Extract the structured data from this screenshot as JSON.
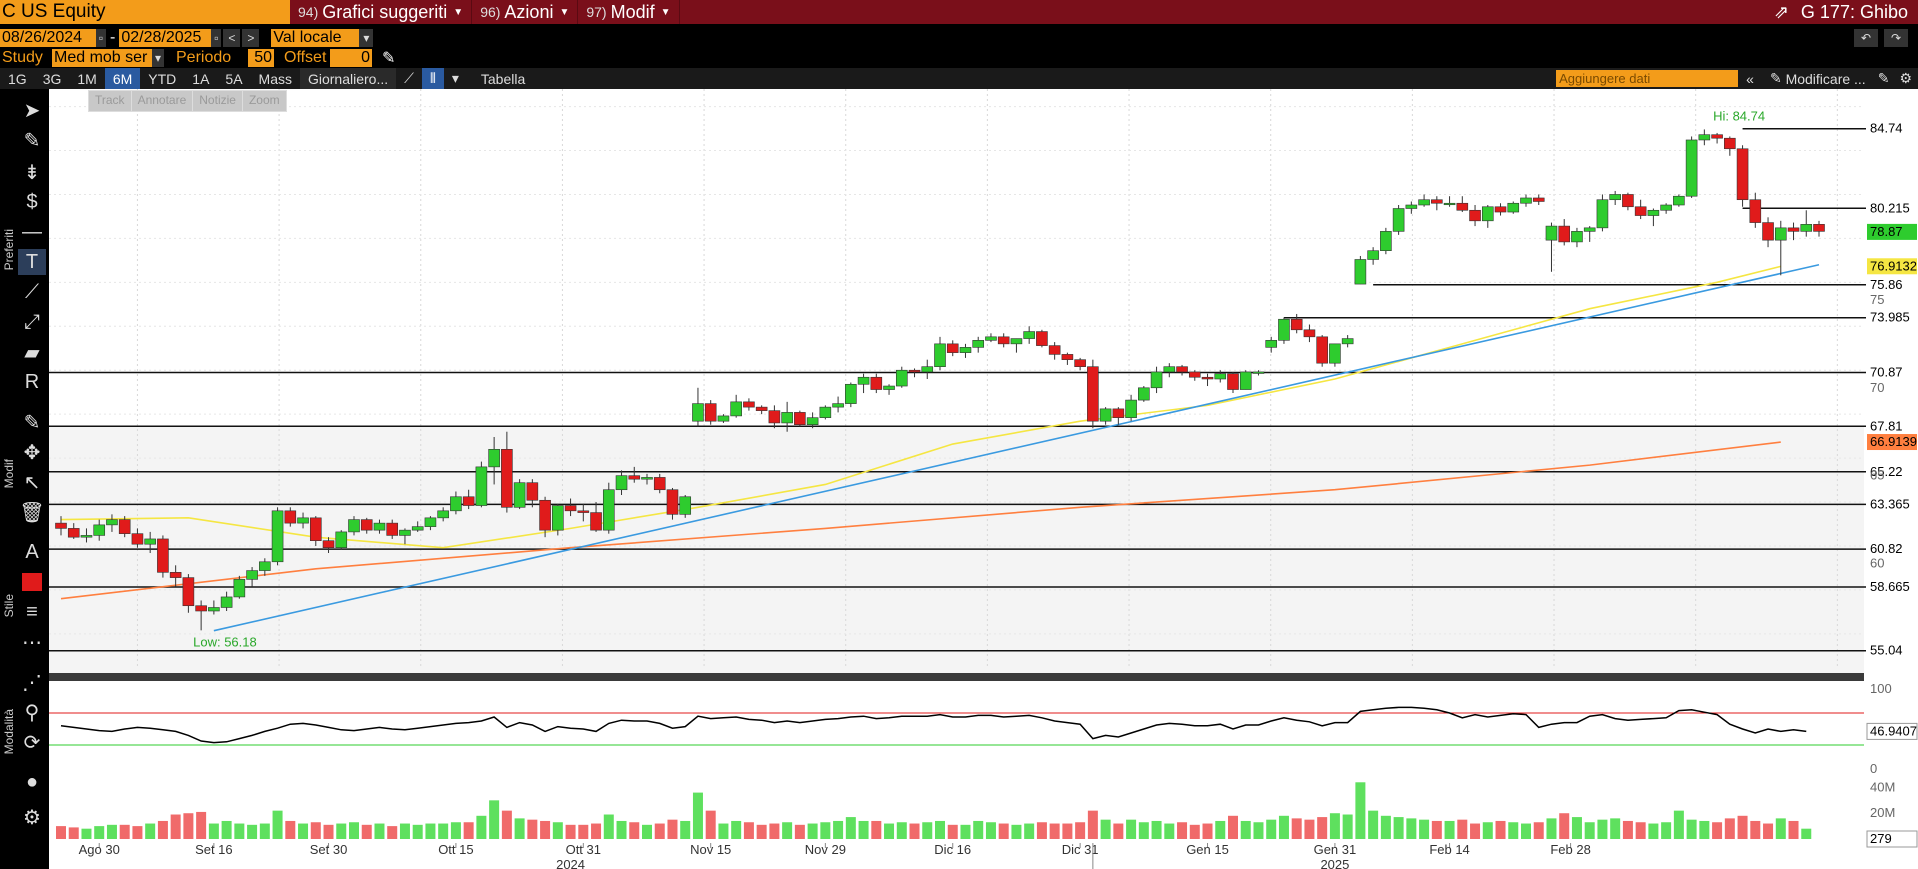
{
  "header": {
    "ticker": "C US Equity",
    "menus": [
      {
        "num": "94)",
        "label": "Grafici suggeriti"
      },
      {
        "num": "96)",
        "label": "Azioni"
      },
      {
        "num": "97)",
        "label": "Modif"
      }
    ],
    "right_title": "G 177: Ghibo"
  },
  "controls": {
    "start_date": "08/26/2024",
    "sep": "-",
    "end_date": "02/28/2025",
    "currency": "Val locale",
    "study_label": "Study",
    "study_value": "Med mob ser",
    "period_label": "Periodo",
    "period_value": "50",
    "offset_label": "Offset",
    "offset_value": "0"
  },
  "tabs": {
    "ranges": [
      "1G",
      "3G",
      "1M",
      "6M",
      "YTD",
      "1A",
      "5A",
      "Mass"
    ],
    "selected": "6M",
    "freq": "Giornaliero...",
    "table": "Tabella",
    "add_data_placeholder": "Aggiungere dati",
    "modify": "Modificare ..."
  },
  "subtools": [
    "Track",
    "Annotare",
    "Notizie",
    "Zoom"
  ],
  "leftbar_sections": [
    "Preferiti",
    "Modif",
    "Stile",
    "Modalità"
  ],
  "colors": {
    "up": "#2ecc2e",
    "down": "#e01b1b",
    "ma50": "#f5e642",
    "ma200": "#ff7f3f",
    "trend": "#3a9ae0",
    "rsi_upper": "#e01b1b",
    "rsi_lower": "#2ecc2e"
  },
  "chart_data": {
    "type": "candlestick",
    "price_scale": {
      "min": 54,
      "max": 87
    },
    "annotations": {
      "hi": "Hi: 84.74",
      "low": "Low: 56.18"
    },
    "levels": [
      84.74,
      80.215,
      75.86,
      73.985,
      70.87,
      67.81,
      65.22,
      63.365,
      60.82,
      58.665,
      55.04
    ],
    "last_tags": [
      {
        "value": "78.87",
        "color": "#2ecc2e"
      },
      {
        "value": "76.9132",
        "color": "#f5e642"
      },
      {
        "value": "66.9139",
        "color": "#ff7f3f"
      }
    ],
    "axis_ticks": [
      "60",
      "65",
      "70",
      "75"
    ],
    "x_labels": [
      "Ago 30",
      "Set 16",
      "Set 30",
      "Ott 15",
      "Ott 31",
      "Nov 15",
      "Nov 29",
      "Dic 16",
      "Dic 31",
      "Gen 15",
      "Gen 31",
      "Feb 14",
      "Feb 28"
    ],
    "year_labels": [
      "2024",
      "2025"
    ],
    "candles": [
      [
        62.3,
        62.7,
        61.6,
        62.0
      ],
      [
        62.0,
        62.3,
        61.4,
        61.5
      ],
      [
        61.5,
        62.0,
        61.2,
        61.6
      ],
      [
        61.6,
        62.5,
        61.3,
        62.2
      ],
      [
        62.2,
        62.8,
        61.8,
        62.5
      ],
      [
        62.5,
        62.7,
        61.5,
        61.7
      ],
      [
        61.7,
        62.0,
        60.9,
        61.1
      ],
      [
        61.1,
        61.8,
        60.6,
        61.4
      ],
      [
        61.4,
        61.6,
        59.2,
        59.5
      ],
      [
        59.5,
        59.9,
        58.7,
        59.2
      ],
      [
        59.2,
        59.4,
        57.2,
        57.6
      ],
      [
        57.6,
        57.9,
        56.2,
        57.3
      ],
      [
        57.3,
        57.9,
        57.1,
        57.5
      ],
      [
        57.5,
        58.4,
        57.3,
        58.1
      ],
      [
        58.1,
        59.3,
        58.0,
        59.1
      ],
      [
        59.1,
        59.8,
        58.7,
        59.6
      ],
      [
        59.6,
        60.3,
        59.3,
        60.1
      ],
      [
        60.1,
        63.2,
        59.9,
        63.0
      ],
      [
        63.0,
        63.2,
        62.1,
        62.3
      ],
      [
        62.3,
        62.9,
        62.0,
        62.6
      ],
      [
        62.6,
        62.7,
        61.0,
        61.3
      ],
      [
        61.3,
        61.5,
        60.6,
        60.9
      ],
      [
        60.9,
        61.9,
        60.8,
        61.8
      ],
      [
        61.8,
        62.7,
        61.6,
        62.5
      ],
      [
        62.5,
        62.6,
        61.7,
        61.9
      ],
      [
        61.9,
        62.5,
        61.7,
        62.3
      ],
      [
        62.3,
        62.5,
        61.4,
        61.6
      ],
      [
        61.6,
        62.0,
        61.1,
        61.9
      ],
      [
        61.9,
        62.4,
        61.8,
        62.1
      ],
      [
        62.1,
        62.7,
        61.9,
        62.6
      ],
      [
        62.6,
        63.2,
        62.4,
        63.0
      ],
      [
        63.0,
        64.1,
        62.8,
        63.8
      ],
      [
        63.8,
        64.2,
        63.1,
        63.3
      ],
      [
        63.3,
        65.8,
        63.2,
        65.5
      ],
      [
        65.5,
        67.2,
        64.5,
        66.5
      ],
      [
        66.5,
        67.5,
        62.9,
        63.2
      ],
      [
        63.2,
        64.8,
        63.1,
        64.6
      ],
      [
        64.6,
        64.8,
        63.2,
        63.6
      ],
      [
        63.6,
        63.8,
        61.5,
        61.9
      ],
      [
        61.9,
        63.4,
        61.6,
        63.3
      ],
      [
        63.3,
        63.7,
        62.7,
        63.0
      ],
      [
        63.0,
        63.4,
        62.4,
        62.9
      ],
      [
        62.9,
        63.5,
        61.8,
        61.9
      ],
      [
        61.9,
        64.6,
        61.7,
        64.2
      ],
      [
        64.2,
        65.3,
        63.9,
        65.0
      ],
      [
        65.0,
        65.5,
        64.6,
        64.8
      ],
      [
        64.8,
        65.1,
        64.5,
        64.9
      ],
      [
        64.9,
        65.1,
        64.0,
        64.2
      ],
      [
        64.2,
        64.3,
        62.5,
        62.8
      ],
      [
        62.8,
        63.9,
        62.6,
        63.8
      ],
      [
        68.1,
        70.0,
        67.8,
        69.1
      ],
      [
        69.1,
        69.3,
        67.9,
        68.1
      ],
      [
        68.1,
        68.5,
        68.0,
        68.4
      ],
      [
        68.4,
        69.6,
        68.3,
        69.2
      ],
      [
        69.2,
        69.4,
        68.7,
        68.9
      ],
      [
        68.9,
        69.0,
        68.5,
        68.7
      ],
      [
        68.7,
        69.0,
        67.7,
        68.0
      ],
      [
        68.0,
        69.2,
        67.5,
        68.6
      ],
      [
        68.6,
        68.7,
        67.8,
        67.9
      ],
      [
        67.9,
        68.6,
        67.7,
        68.3
      ],
      [
        68.3,
        69.0,
        68.2,
        68.9
      ],
      [
        68.9,
        69.5,
        68.6,
        69.1
      ],
      [
        69.1,
        70.3,
        68.9,
        70.2
      ],
      [
        70.2,
        70.8,
        69.7,
        70.6
      ],
      [
        70.6,
        70.8,
        69.7,
        69.9
      ],
      [
        69.9,
        70.2,
        69.6,
        70.1
      ],
      [
        70.1,
        71.2,
        70.0,
        71.0
      ],
      [
        71.0,
        71.1,
        70.6,
        70.9
      ],
      [
        70.9,
        71.6,
        70.5,
        71.2
      ],
      [
        71.2,
        72.9,
        71.0,
        72.5
      ],
      [
        72.5,
        72.7,
        71.8,
        72.0
      ],
      [
        72.0,
        72.5,
        71.7,
        72.3
      ],
      [
        72.3,
        72.9,
        72.0,
        72.7
      ],
      [
        72.7,
        73.1,
        72.6,
        72.9
      ],
      [
        72.9,
        73.1,
        72.3,
        72.5
      ],
      [
        72.5,
        72.8,
        72.0,
        72.8
      ],
      [
        72.8,
        73.5,
        72.5,
        73.2
      ],
      [
        73.2,
        73.3,
        72.3,
        72.4
      ],
      [
        72.4,
        72.6,
        71.6,
        71.9
      ],
      [
        71.9,
        72.0,
        71.3,
        71.6
      ],
      [
        71.6,
        71.7,
        71.0,
        71.2
      ],
      [
        71.2,
        71.6,
        67.7,
        68.1
      ],
      [
        68.1,
        68.9,
        67.9,
        68.8
      ],
      [
        68.8,
        68.9,
        67.9,
        68.3
      ],
      [
        68.3,
        69.6,
        68.1,
        69.3
      ],
      [
        69.3,
        70.1,
        69.2,
        70.0
      ],
      [
        70.0,
        71.2,
        69.7,
        70.9
      ],
      [
        70.9,
        71.4,
        70.6,
        71.2
      ],
      [
        71.2,
        71.3,
        70.7,
        70.9
      ],
      [
        70.9,
        71.0,
        70.4,
        70.6
      ],
      [
        70.6,
        70.8,
        70.1,
        70.5
      ],
      [
        70.5,
        71.0,
        70.3,
        70.8
      ],
      [
        70.8,
        70.9,
        69.7,
        69.9
      ],
      [
        69.9,
        71.0,
        69.9,
        70.9
      ],
      [
        70.9,
        71.0,
        70.7,
        70.9
      ],
      [
        72.3,
        72.9,
        72.0,
        72.7
      ],
      [
        72.7,
        74.0,
        72.5,
        73.9
      ],
      [
        73.9,
        74.2,
        73.1,
        73.3
      ],
      [
        73.3,
        73.6,
        72.6,
        72.9
      ],
      [
        72.9,
        73.0,
        71.2,
        71.4
      ],
      [
        71.4,
        72.5,
        71.2,
        72.5
      ],
      [
        72.5,
        73.0,
        72.3,
        72.8
      ],
      [
        75.9,
        77.5,
        75.9,
        77.3
      ],
      [
        77.3,
        78.0,
        77.0,
        77.8
      ],
      [
        77.8,
        79.1,
        77.6,
        78.9
      ],
      [
        78.9,
        80.4,
        78.7,
        80.2
      ],
      [
        80.2,
        80.6,
        79.9,
        80.4
      ],
      [
        80.4,
        81.0,
        80.3,
        80.7
      ],
      [
        80.7,
        80.9,
        80.1,
        80.5
      ],
      [
        80.5,
        80.9,
        80.3,
        80.5
      ],
      [
        80.5,
        80.9,
        80.0,
        80.1
      ],
      [
        80.1,
        80.4,
        79.2,
        79.5
      ],
      [
        79.5,
        80.4,
        79.1,
        80.3
      ],
      [
        80.3,
        80.5,
        79.8,
        80.0
      ],
      [
        80.0,
        80.6,
        79.9,
        80.5
      ],
      [
        80.5,
        81.0,
        80.3,
        80.8
      ],
      [
        80.8,
        81.0,
        80.4,
        80.6
      ],
      [
        78.4,
        79.4,
        76.6,
        79.2
      ],
      [
        79.2,
        79.6,
        78.1,
        78.3
      ],
      [
        78.3,
        79.1,
        78.0,
        78.9
      ],
      [
        78.9,
        79.2,
        78.3,
        79.1
      ],
      [
        79.1,
        81.0,
        78.9,
        80.7
      ],
      [
        80.7,
        81.2,
        80.4,
        81.0
      ],
      [
        81.0,
        81.1,
        80.1,
        80.3
      ],
      [
        80.3,
        80.7,
        79.6,
        79.8
      ],
      [
        79.8,
        80.2,
        79.2,
        80.1
      ],
      [
        80.1,
        80.5,
        79.9,
        80.4
      ],
      [
        80.4,
        81.0,
        80.3,
        80.9
      ],
      [
        80.9,
        84.3,
        80.8,
        84.1
      ],
      [
        84.1,
        84.7,
        83.8,
        84.4
      ],
      [
        84.4,
        84.5,
        83.9,
        84.2
      ],
      [
        84.2,
        84.3,
        83.2,
        83.6
      ],
      [
        83.6,
        83.8,
        80.3,
        80.7
      ],
      [
        80.7,
        81.1,
        79.1,
        79.4
      ],
      [
        79.4,
        79.7,
        78.0,
        78.4
      ],
      [
        78.4,
        79.5,
        76.4,
        79.1
      ],
      [
        79.1,
        79.4,
        78.4,
        78.9
      ],
      [
        78.9,
        80.1,
        78.6,
        79.3
      ],
      [
        79.3,
        79.5,
        78.6,
        78.9
      ]
    ],
    "ma50": [
      [
        0,
        62.5
      ],
      [
        10,
        62.6
      ],
      [
        20,
        61.5
      ],
      [
        30,
        60.9
      ],
      [
        40,
        62.0
      ],
      [
        50,
        63.2
      ],
      [
        60,
        64.5
      ],
      [
        70,
        66.8
      ],
      [
        80,
        68.1
      ],
      [
        90,
        69.0
      ],
      [
        100,
        70.5
      ],
      [
        110,
        72.5
      ],
      [
        120,
        74.5
      ],
      [
        130,
        76.0
      ],
      [
        135,
        76.91
      ]
    ],
    "ma200": [
      [
        0,
        58.0
      ],
      [
        20,
        59.7
      ],
      [
        40,
        60.9
      ],
      [
        60,
        62.0
      ],
      [
        80,
        63.2
      ],
      [
        100,
        64.2
      ],
      [
        120,
        65.6
      ],
      [
        135,
        66.91
      ]
    ],
    "trendline": [
      [
        12,
        56.18
      ],
      [
        138,
        77.0
      ]
    ],
    "rsi": {
      "scale": [
        0,
        100
      ],
      "ticks": [
        "100",
        "50",
        "0"
      ],
      "upper": 70,
      "lower": 30,
      "last": "46.9407",
      "values": [
        54,
        52,
        50,
        48,
        47,
        50,
        52,
        51,
        49,
        47,
        42,
        35,
        33,
        34,
        38,
        42,
        47,
        51,
        56,
        57,
        55,
        52,
        49,
        48,
        50,
        52,
        50,
        49,
        51,
        53,
        55,
        57,
        58,
        60,
        65,
        52,
        58,
        55,
        47,
        53,
        51,
        50,
        47,
        57,
        61,
        60,
        60,
        57,
        51,
        53,
        66,
        63,
        64,
        65,
        62,
        61,
        58,
        60,
        58,
        60,
        62,
        63,
        65,
        66,
        63,
        64,
        66,
        66,
        66,
        68,
        65,
        65,
        67,
        67,
        65,
        66,
        67,
        64,
        60,
        58,
        56,
        38,
        42,
        40,
        45,
        50,
        55,
        57,
        56,
        54,
        54,
        56,
        50,
        55,
        55,
        60,
        64,
        61,
        59,
        54,
        58,
        58,
        72,
        74,
        76,
        77,
        77,
        76,
        74,
        70,
        64,
        68,
        65,
        67,
        69,
        68,
        52,
        56,
        58,
        58,
        66,
        68,
        63,
        61,
        62,
        63,
        64,
        73,
        74,
        71,
        68,
        56,
        50,
        45,
        50,
        47,
        49,
        47
      ]
    },
    "volume": {
      "ticks": [
        "40M",
        "20M"
      ],
      "last": "279",
      "max": 45,
      "values": [
        10,
        9,
        8,
        10,
        11,
        11,
        10,
        12,
        14,
        19,
        20,
        21,
        12,
        14,
        12,
        11,
        12,
        22,
        14,
        12,
        13,
        11,
        12,
        13,
        11,
        12,
        10,
        12,
        11,
        12,
        12,
        13,
        13,
        18,
        30,
        22,
        16,
        15,
        14,
        13,
        11,
        11,
        12,
        19,
        14,
        13,
        11,
        12,
        15,
        14,
        36,
        22,
        12,
        14,
        13,
        11,
        12,
        13,
        11,
        12,
        13,
        14,
        17,
        14,
        14,
        12,
        13,
        12,
        13,
        14,
        11,
        11,
        14,
        13,
        12,
        11,
        12,
        13,
        12,
        12,
        13,
        22,
        15,
        12,
        15,
        13,
        14,
        12,
        13,
        11,
        12,
        14,
        18,
        14,
        13,
        15,
        18,
        16,
        15,
        17,
        20,
        19,
        44,
        22,
        18,
        17,
        16,
        15,
        14,
        14,
        15,
        12,
        13,
        14,
        13,
        12,
        13,
        16,
        20,
        17,
        13,
        15,
        16,
        14,
        13,
        12,
        13,
        22,
        15,
        14,
        13,
        16,
        18,
        14,
        12,
        16,
        14,
        8
      ]
    }
  }
}
